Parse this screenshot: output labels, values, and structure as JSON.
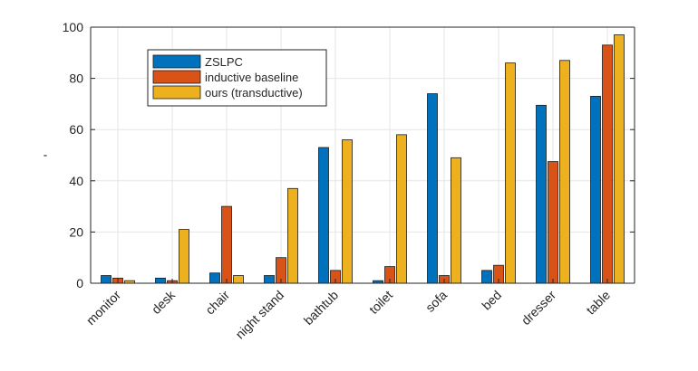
{
  "chart_data": {
    "type": "bar",
    "categories": [
      "monitor",
      "desk",
      "chair",
      "night stand",
      "bathtub",
      "toilet",
      "sofa",
      "bed",
      "dresser",
      "table"
    ],
    "series": [
      {
        "name": "ZSLPC",
        "color": "#0072BD",
        "values": [
          3,
          2,
          4,
          3,
          53,
          1,
          74,
          5,
          69.5,
          73
        ]
      },
      {
        "name": "inductive baseline",
        "color": "#D95319",
        "values": [
          2,
          1,
          30,
          10,
          5,
          6.5,
          3,
          7,
          47.5,
          93
        ]
      },
      {
        "name": "ours (transductive)",
        "color": "#EDB120",
        "values": [
          1,
          21,
          3,
          37,
          56,
          58,
          49,
          86,
          87,
          97
        ]
      }
    ],
    "ylabel": "-",
    "ylim": [
      0,
      100
    ],
    "yticks": [
      0,
      20,
      40,
      60,
      80,
      100
    ],
    "grid": true,
    "legend_position": "top-left"
  }
}
